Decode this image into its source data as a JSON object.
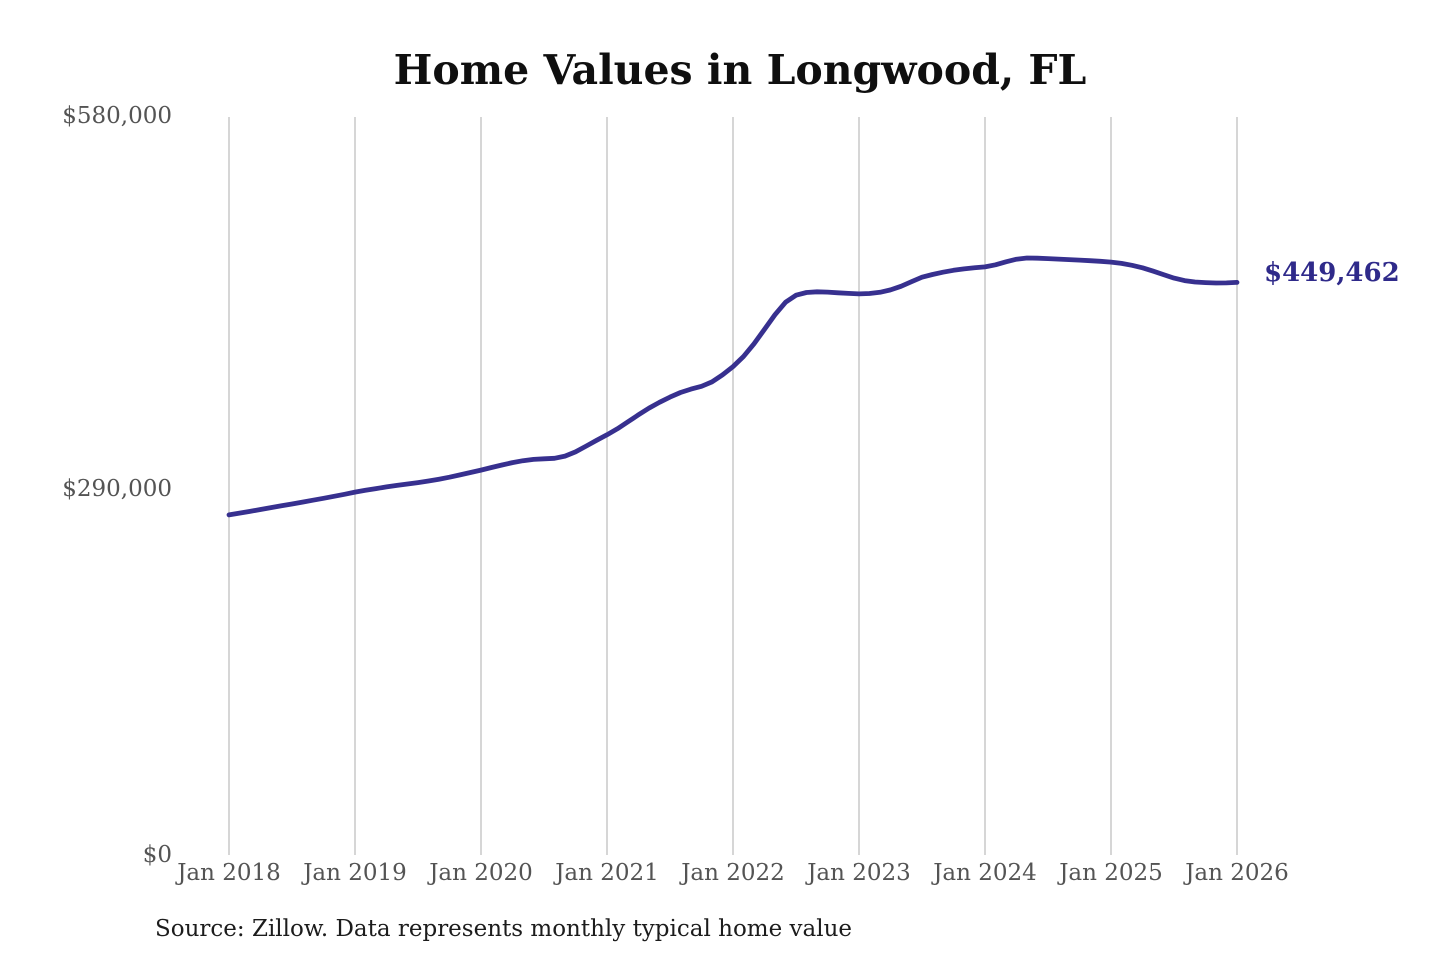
{
  "chart": {
    "title": "Home Values in Longwood, FL",
    "value_label": "$449,462",
    "source_note": "Source: Zillow. Data represents monthly typical home value",
    "colors": {
      "line": "#37308f",
      "value_label_text": "#2f2a8a",
      "grid": "#cbcbcb",
      "axis_text": "#545454",
      "title_text": "#0f0f0f",
      "source_text": "#1c1c1c",
      "background": "#ffffff"
    }
  },
  "chart_data": {
    "type": "line",
    "title": "Home Values in Longwood, FL",
    "xlabel": "",
    "ylabel": "",
    "ylim": [
      0,
      580000
    ],
    "y_ticks": [
      0,
      290000,
      580000
    ],
    "y_tick_labels": [
      "$0",
      "$290,000",
      "$580,000"
    ],
    "x_tick_labels": [
      "Jan 2018",
      "Jan 2019",
      "Jan 2020",
      "Jan 2021",
      "Jan 2022",
      "Jan 2023",
      "Jan 2024",
      "Jan 2025",
      "Jan 2026"
    ],
    "grid": "vertical-only",
    "legend": "none",
    "frequency": "monthly",
    "x_start": "2018-01",
    "x_end": "2026-01",
    "end_label": {
      "text": "$449,462",
      "value": 449462
    },
    "series": [
      {
        "name": "Typical home value",
        "color": "#37308f",
        "values": [
          266000,
          267400,
          268800,
          270300,
          271800,
          273200,
          274600,
          276100,
          277600,
          279100,
          280700,
          282300,
          284000,
          285400,
          286800,
          288100,
          289300,
          290400,
          291500,
          292800,
          294200,
          295800,
          297600,
          299500,
          301400,
          303400,
          305400,
          307300,
          308800,
          309800,
          310300,
          310700,
          312400,
          315700,
          320200,
          324800,
          329200,
          334000,
          339500,
          345000,
          350300,
          354900,
          359000,
          362600,
          365300,
          367500,
          371000,
          376500,
          383000,
          391000,
          401000,
          412500,
          424000,
          433800,
          439400,
          441500,
          442100,
          441800,
          441300,
          440800,
          440400,
          440700,
          441700,
          443600,
          446400,
          450000,
          453600,
          455700,
          457500,
          459000,
          460100,
          461000,
          461700,
          463400,
          465700,
          467800,
          468700,
          468600,
          468300,
          467900,
          467500,
          467100,
          466600,
          466100,
          465500,
          464500,
          463000,
          461000,
          458400,
          455600,
          452900,
          450900,
          449800,
          449300,
          449000,
          449100,
          449462
        ]
      }
    ]
  }
}
